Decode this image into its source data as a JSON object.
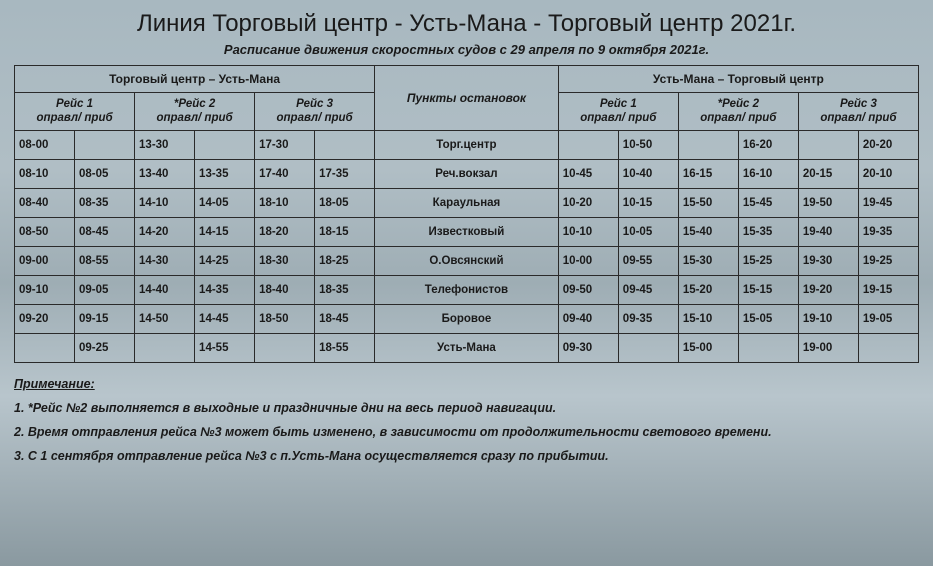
{
  "title": "Линия Торговый центр - Усть-Мана - Торговый центр 2021г.",
  "subtitle": "Расписание движения скоростных судов с 29 апреля по 9 октября 2021г.",
  "headers": {
    "direction_out": "Торговый центр – Усть-Мана",
    "direction_back": "Усть-Мана – Торговый центр",
    "stops": "Пункты остановок",
    "voyage1": "Рейс 1",
    "voyage2": "*Рейс 2",
    "voyage3": "Рейс 3",
    "dep_arr": "оправл/ приб"
  },
  "stops": [
    "Торг.центр",
    "Реч.вокзал",
    "Караульная",
    "Известковый",
    "О.Овсянский",
    "Телефонистов",
    "Боровое",
    "Усть-Мана"
  ],
  "schedule": {
    "columns": [
      "out1d",
      "out1a",
      "out2d",
      "out2a",
      "out3d",
      "out3a",
      "back1d",
      "back1a",
      "back2d",
      "back2a",
      "back3d",
      "back3a"
    ],
    "rows": [
      [
        "08-00",
        "",
        "13-30",
        "",
        "17-30",
        "",
        "",
        "10-50",
        "",
        "16-20",
        "",
        "20-20"
      ],
      [
        "08-10",
        "08-05",
        "13-40",
        "13-35",
        "17-40",
        "17-35",
        "10-45",
        "10-40",
        "16-15",
        "16-10",
        "20-15",
        "20-10"
      ],
      [
        "08-40",
        "08-35",
        "14-10",
        "14-05",
        "18-10",
        "18-05",
        "10-20",
        "10-15",
        "15-50",
        "15-45",
        "19-50",
        "19-45"
      ],
      [
        "08-50",
        "08-45",
        "14-20",
        "14-15",
        "18-20",
        "18-15",
        "10-10",
        "10-05",
        "15-40",
        "15-35",
        "19-40",
        "19-35"
      ],
      [
        "09-00",
        "08-55",
        "14-30",
        "14-25",
        "18-30",
        "18-25",
        "10-00",
        "09-55",
        "15-30",
        "15-25",
        "19-30",
        "19-25"
      ],
      [
        "09-10",
        "09-05",
        "14-40",
        "14-35",
        "18-40",
        "18-35",
        "09-50",
        "09-45",
        "15-20",
        "15-15",
        "19-20",
        "19-15"
      ],
      [
        "09-20",
        "09-15",
        "14-50",
        "14-45",
        "18-50",
        "18-45",
        "09-40",
        "09-35",
        "15-10",
        "15-05",
        "19-10",
        "19-05"
      ],
      [
        "",
        "09-25",
        "",
        "14-55",
        "",
        "18-55",
        "09-30",
        "",
        "15-00",
        "",
        "19-00",
        ""
      ]
    ]
  },
  "notes": {
    "title": "Примечание:",
    "items": [
      "1. *Рейс №2 выполняется в выходные и праздничные дни на весь период навигации.",
      "2. Время отправления рейса №3 может быть изменено, в зависимости от продолжительности светового времени.",
      "3. С 1 сентября отправление рейса №3 с п.Усть-Мана осуществляется сразу по прибытии."
    ]
  },
  "style": {
    "title_fontsize": 24,
    "subtitle_fontsize": 13,
    "table_fontsize": 11.5,
    "border_color": "#2a2a2a",
    "text_color": "#1a1a1a",
    "bg_gradient": [
      "#a8b8c0",
      "#b0bec5",
      "#9eadb4",
      "#b8c5cc",
      "#8a99a0"
    ]
  }
}
